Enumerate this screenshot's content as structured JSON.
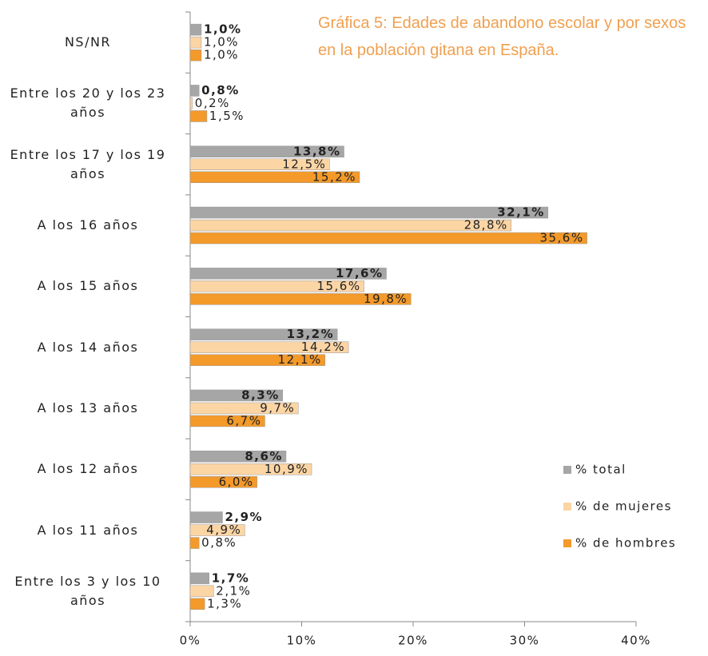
{
  "chart_data": {
    "type": "hbar",
    "title": "Gráfica 5: Edades de abandono escolar y por sexos en la población gitana en España.",
    "categories": [
      "NS/NR",
      "Entre los 20 y los 23 años",
      "Entre los 17 y los 19 años",
      "A los 16 años",
      "A los 15 años",
      "A los 14 años",
      "A los 13 años",
      "A los 12 años",
      "A los 11 años",
      "Entre los 3 y los 10 años"
    ],
    "series": [
      {
        "name": "% total",
        "color": "#a6a6a6",
        "values": [
          1.0,
          0.8,
          13.8,
          32.1,
          17.6,
          13.2,
          8.3,
          8.6,
          2.9,
          1.7
        ],
        "value_labels": [
          "1,0%",
          "0,8%",
          "13,8%",
          "32,1%",
          "17,6%",
          "13,2%",
          "8,3%",
          "8,6%",
          "2,9%",
          "1,7%"
        ]
      },
      {
        "name": "% de mujeres",
        "color": "#fcd5a5",
        "values": [
          1.0,
          0.2,
          12.5,
          28.8,
          15.6,
          14.2,
          9.7,
          10.9,
          4.9,
          2.1
        ],
        "value_labels": [
          "1,0%",
          "0,2%",
          "12,5%",
          "28,8%",
          "15,6%",
          "14,2%",
          "9,7%",
          "10,9%",
          "4,9%",
          "2,1%"
        ]
      },
      {
        "name": "% de hombres",
        "color": "#f39a2b",
        "values": [
          1.0,
          1.5,
          15.2,
          35.6,
          19.8,
          12.1,
          6.7,
          6.0,
          0.8,
          1.3
        ],
        "value_labels": [
          "1,0%",
          "1,5%",
          "15,2%",
          "35,6%",
          "19,8%",
          "12,1%",
          "6,7%",
          "6,0%",
          "0,8%",
          "1,3%"
        ]
      }
    ],
    "xlim": [
      0,
      40
    ],
    "xticks": [
      {
        "value": 0,
        "label": "0%"
      },
      {
        "value": 10,
        "label": "10%"
      },
      {
        "value": 20,
        "label": "20%"
      },
      {
        "value": 30,
        "label": "30%"
      },
      {
        "value": 40,
        "label": "40%"
      }
    ],
    "legend": "right"
  }
}
